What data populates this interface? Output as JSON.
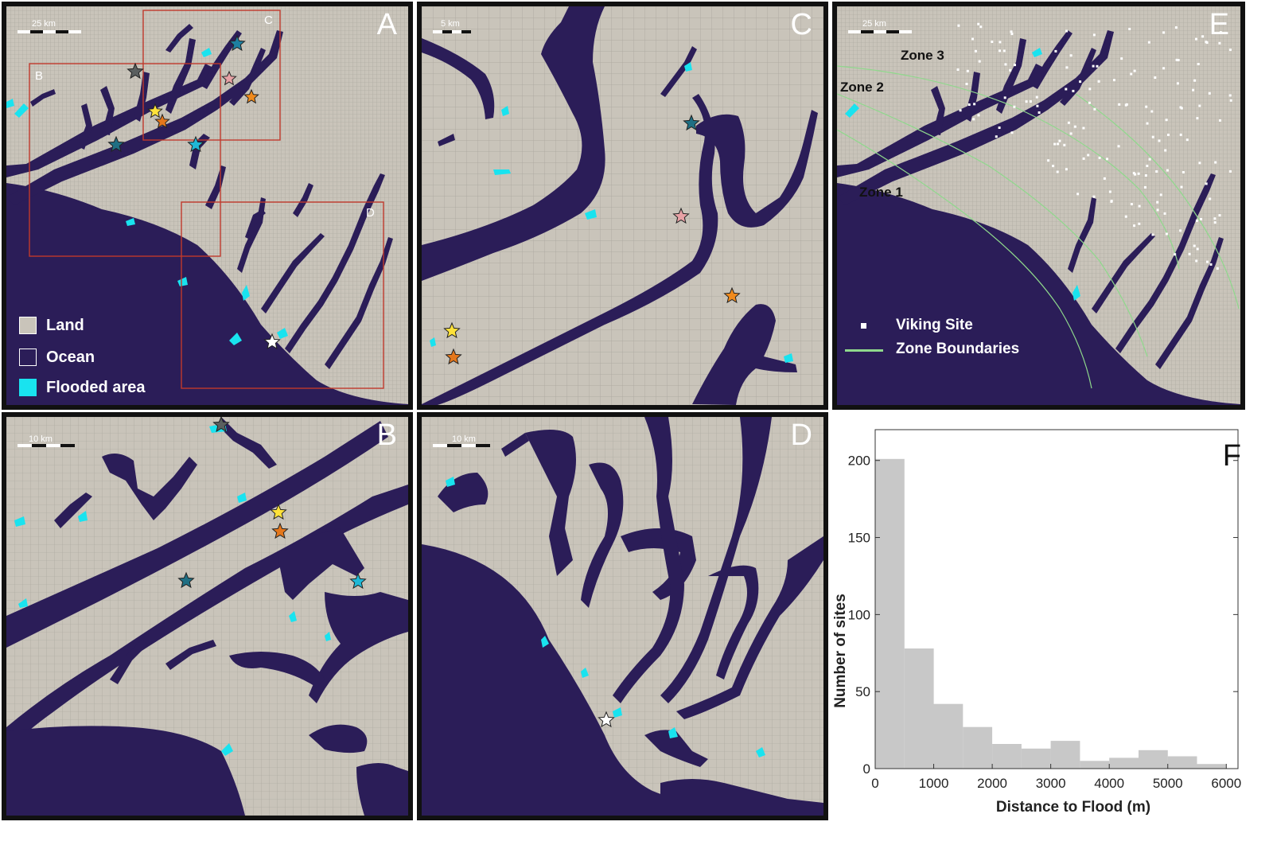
{
  "colors": {
    "land": "#c9c4ba",
    "ocean": "#2b1d58",
    "flooded": "#19e3ef",
    "grid": "#9e9a92",
    "box": "#c0392b",
    "zone_boundary": "#8fd98c",
    "viking_site": "#ffffff"
  },
  "panels": {
    "A": {
      "letter": "A",
      "scale_label": "25 km",
      "inset_labels": [
        "B",
        "C",
        "D"
      ],
      "legend": [
        {
          "label": "Land",
          "swatch": "land-swatch"
        },
        {
          "label": "Ocean",
          "swatch": "ocean-swatch"
        },
        {
          "label": "Flooded area",
          "swatch": "flooded-swatch"
        }
      ],
      "stars": [
        {
          "name": "dark-grey-star",
          "color": "#5a5f5f"
        },
        {
          "name": "teal-star",
          "color": "#1e7fa0"
        },
        {
          "name": "pink-star",
          "color": "#e7a1a5"
        },
        {
          "name": "orange-star",
          "color": "#f08a1c"
        },
        {
          "name": "yellow-star",
          "color": "#ffe23a"
        },
        {
          "name": "dark-orange-star",
          "color": "#e4771c"
        },
        {
          "name": "dark-teal-star",
          "color": "#1f6f83"
        },
        {
          "name": "cyan-star",
          "color": "#1fb8d6"
        },
        {
          "name": "white-star",
          "color": "#ffffff"
        }
      ]
    },
    "B": {
      "letter": "B",
      "scale_label": "10 km"
    },
    "C": {
      "letter": "C",
      "scale_label": "5 km"
    },
    "D": {
      "letter": "D",
      "scale_label": "10 km"
    },
    "E": {
      "letter": "E",
      "scale_label": "25 km",
      "zones": [
        "Zone 3",
        "Zone 2",
        "Zone 1"
      ],
      "legend": [
        {
          "label": "Viking Site",
          "swatch": "viking-site-swatch"
        },
        {
          "label": "Zone Boundaries",
          "swatch": "zone-boundary-swatch"
        }
      ]
    },
    "F": {
      "letter": "F"
    }
  },
  "chart_data": {
    "type": "bar",
    "title": "",
    "xlabel": "Distance to Flood (m)",
    "ylabel": "Number of sites",
    "xlim": [
      0,
      6200
    ],
    "ylim": [
      0,
      220
    ],
    "x_ticks": [
      "0",
      "1000",
      "2000",
      "3000",
      "4000",
      "5000",
      "6000"
    ],
    "y_ticks": [
      "0",
      "50",
      "100",
      "150",
      "200"
    ],
    "bin_width": 500,
    "bin_starts": [
      0,
      500,
      1000,
      1500,
      2000,
      2500,
      3000,
      3500,
      4000,
      4500,
      5000,
      5500,
      6000
    ],
    "values": [
      201,
      78,
      42,
      27,
      16,
      13,
      18,
      5,
      7,
      12,
      8,
      3,
      0
    ],
    "bar_color": "#c8c8c8",
    "grid": false
  }
}
